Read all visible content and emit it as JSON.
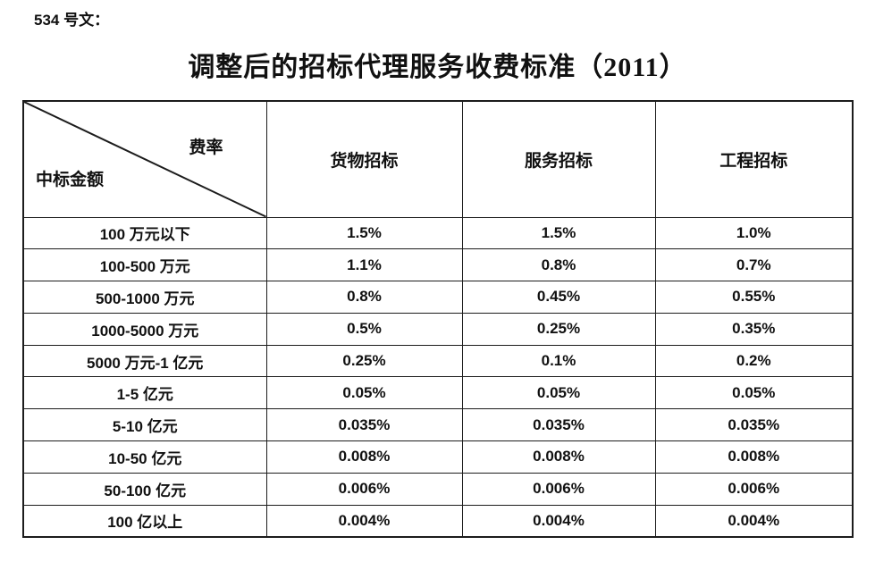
{
  "page": {
    "doc_label": "534 号文：",
    "title": "调整后的招标代理服务收费标准（2011）"
  },
  "table": {
    "corner": {
      "top_right": "费率",
      "bottom_left": "中标金额"
    },
    "columns": [
      "货物招标",
      "服务招标",
      "工程招标"
    ],
    "rows": [
      {
        "label": "100 万元以下",
        "values": [
          "1.5%",
          "1.5%",
          "1.0%"
        ]
      },
      {
        "label": "100-500 万元",
        "values": [
          "1.1%",
          "0.8%",
          "0.7%"
        ]
      },
      {
        "label": "500-1000 万元",
        "values": [
          "0.8%",
          "0.45%",
          "0.55%"
        ]
      },
      {
        "label": "1000-5000 万元",
        "values": [
          "0.5%",
          "0.25%",
          "0.35%"
        ]
      },
      {
        "label": "5000 万元-1 亿元",
        "values": [
          "0.25%",
          "0.1%",
          "0.2%"
        ]
      },
      {
        "label": "1-5 亿元",
        "values": [
          "0.05%",
          "0.05%",
          "0.05%"
        ]
      },
      {
        "label": "5-10 亿元",
        "values": [
          "0.035%",
          "0.035%",
          "0.035%"
        ]
      },
      {
        "label": "10-50 亿元",
        "values": [
          "0.008%",
          "0.008%",
          "0.008%"
        ]
      },
      {
        "label": "50-100 亿元",
        "values": [
          "0.006%",
          "0.006%",
          "0.006%"
        ]
      },
      {
        "label": "100 亿以上",
        "values": [
          "0.004%",
          "0.004%",
          "0.004%"
        ]
      }
    ]
  },
  "colors": {
    "text": "#111111",
    "border": "#1c1c1c",
    "background": "#ffffff"
  }
}
